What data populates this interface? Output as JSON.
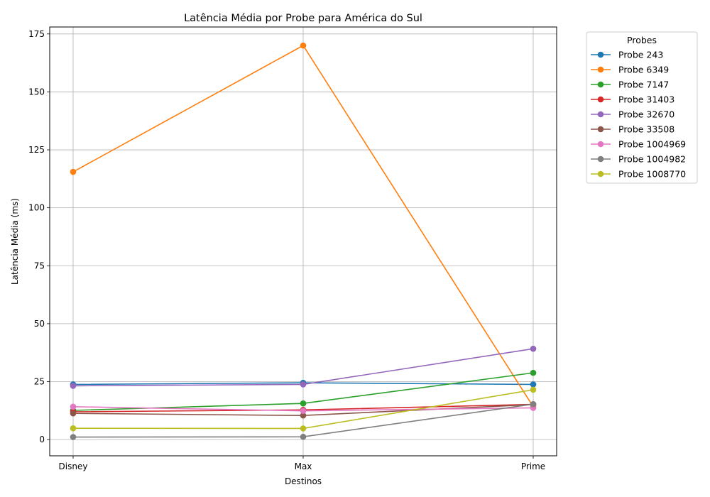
{
  "chart_data": {
    "type": "line",
    "title": "Latência Média por Probe para América do Sul",
    "xlabel": "Destinos",
    "ylabel": "Latência Média (ms)",
    "categories": [
      "Disney",
      "Max",
      "Prime"
    ],
    "ylim": [
      -7,
      178
    ],
    "yticks": [
      0,
      25,
      50,
      75,
      100,
      125,
      150,
      175
    ],
    "grid": true,
    "legend_title": "Probes",
    "legend_position": "outside-top-right",
    "series": [
      {
        "name": "Probe 243",
        "color": "#1f77b4",
        "values": [
          23.8,
          24.5,
          23.8
        ]
      },
      {
        "name": "Probe 6349",
        "color": "#ff7f0e",
        "values": [
          115.5,
          170.0,
          14.2
        ]
      },
      {
        "name": "Probe 7147",
        "color": "#2ca02c",
        "values": [
          12.6,
          15.6,
          28.8
        ]
      },
      {
        "name": "Probe 31403",
        "color": "#d62728",
        "values": [
          12.0,
          12.8,
          15.2
        ]
      },
      {
        "name": "Probe 32670",
        "color": "#9467bd",
        "values": [
          23.2,
          23.8,
          39.2
        ]
      },
      {
        "name": "Probe 33508",
        "color": "#8c564b",
        "values": [
          11.3,
          10.4,
          15.1
        ]
      },
      {
        "name": "Probe 1004969",
        "color": "#e377c2",
        "values": [
          14.2,
          12.4,
          13.7
        ]
      },
      {
        "name": "Probe 1004982",
        "color": "#7f7f7f",
        "values": [
          1.1,
          1.2,
          15.3
        ]
      },
      {
        "name": "Probe 1008770",
        "color": "#bcbd22",
        "values": [
          4.9,
          4.8,
          21.5
        ]
      }
    ]
  }
}
